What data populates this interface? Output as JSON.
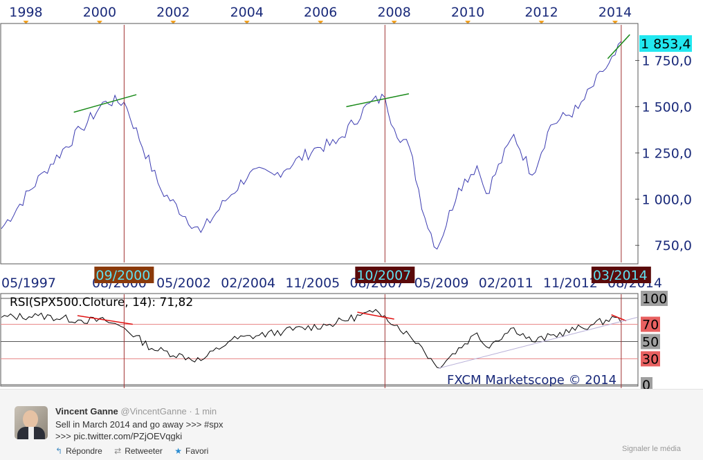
{
  "chart": {
    "top_axis_years": [
      "1998",
      "2000",
      "2002",
      "2004",
      "2006",
      "2008",
      "2010",
      "2012",
      "2014"
    ],
    "price_ticks": [
      "1 750,0",
      "1 500,0",
      "1 250,0",
      "1 000,0",
      "750,0"
    ],
    "price_tick_values": [
      1750,
      1500,
      1250,
      1000,
      750
    ],
    "current_price_label": "1 853,4",
    "date_axis_labels": [
      "05/1997",
      "08/2000",
      "05/2002",
      "02/2004",
      "11/2005",
      "08/2007",
      "05/2009",
      "02/2011",
      "11/2012",
      "08/2014"
    ],
    "marker_labels": [
      "09/2000",
      "10/2007",
      "03/2014"
    ],
    "rsi_title": "RSI(SPX500.Cloture, 14): 71,82",
    "rsi_levels": [
      "100",
      "70",
      "50",
      "30",
      "0"
    ],
    "watermark": "FXCM Marketscope © 2014",
    "colors": {
      "price_line": "#3a3ab0",
      "rsi_line": "#000000",
      "peak_trend": "#1a8a1a",
      "rsi_trend": "#e01010",
      "support_trend": "#b8b0d8",
      "marker_2000_bg": "#8a3a0a",
      "marker_dark_bg": "#5a0a0a",
      "marker_text": "#5fe0f0",
      "current_price_bg": "#22e8f0",
      "level_grey_bg": "#a0a0a0",
      "level_red_bg": "#e86060"
    }
  },
  "chart_data": [
    {
      "type": "line",
      "title": "",
      "x_range": [
        "05/1997",
        "08/2014"
      ],
      "ylim": [
        650,
        1950
      ],
      "series": [
        {
          "x": [
            "1997-05",
            "1998-07",
            "1999-07",
            "2000-03",
            "2000-09",
            "2001-09",
            "2002-10",
            "2003-06",
            "2004-02",
            "2004-10",
            "2005-12",
            "2006-06",
            "2007-05",
            "2007-10",
            "2008-01",
            "2008-06",
            "2008-11",
            "2009-03",
            "2009-10",
            "2010-04",
            "2010-07",
            "2011-04",
            "2011-10",
            "2012-04",
            "2013-01",
            "2013-09",
            "2014-01",
            "2014-03"
          ],
          "values": [
            840,
            1150,
            1380,
            1530,
            1525,
            1050,
            820,
            990,
            1145,
            1130,
            1280,
            1300,
            1520,
            1550,
            1380,
            1280,
            900,
            730,
            1060,
            1180,
            1030,
            1350,
            1130,
            1400,
            1490,
            1690,
            1780,
            1853.4
          ]
        }
      ]
    },
    {
      "type": "line",
      "title": "RSI(SPX500.Cloture, 14): 71,82",
      "ylim": [
        0,
        100
      ],
      "series": [
        {
          "x": [
            "1997-05",
            "1998-05",
            "1999-06",
            "2000-03",
            "2000-09",
            "2001-06",
            "2002-10",
            "2003-08",
            "2005-01",
            "2006-04",
            "2007-06",
            "2007-10",
            "2008-09",
            "2009-03",
            "2010-04",
            "2010-07",
            "2011-04",
            "2011-10",
            "2013-06",
            "2014-01",
            "2014-03"
          ],
          "values": [
            78,
            80,
            75,
            74,
            66,
            42,
            28,
            52,
            62,
            70,
            84,
            80,
            48,
            20,
            60,
            44,
            66,
            50,
            70,
            78,
            71.82
          ]
        }
      ]
    }
  ],
  "tweet": {
    "author_name": "Vincent Ganne",
    "author_handle": "@VincentGanne",
    "separator": "·",
    "time": "1 min",
    "text_line1": "Sell in March 2014 and go away >>> #spx",
    "text_line2": ">>> pic.twitter.com/PZjOEVqgki",
    "actions": {
      "reply": "Répondre",
      "retweet": "Retweeter",
      "favorite": "Favori"
    },
    "icons": {
      "reply": "reply-arrow-icon",
      "retweet": "retweet-icon",
      "favorite": "star-icon"
    },
    "report_media": "Signaler le média"
  }
}
